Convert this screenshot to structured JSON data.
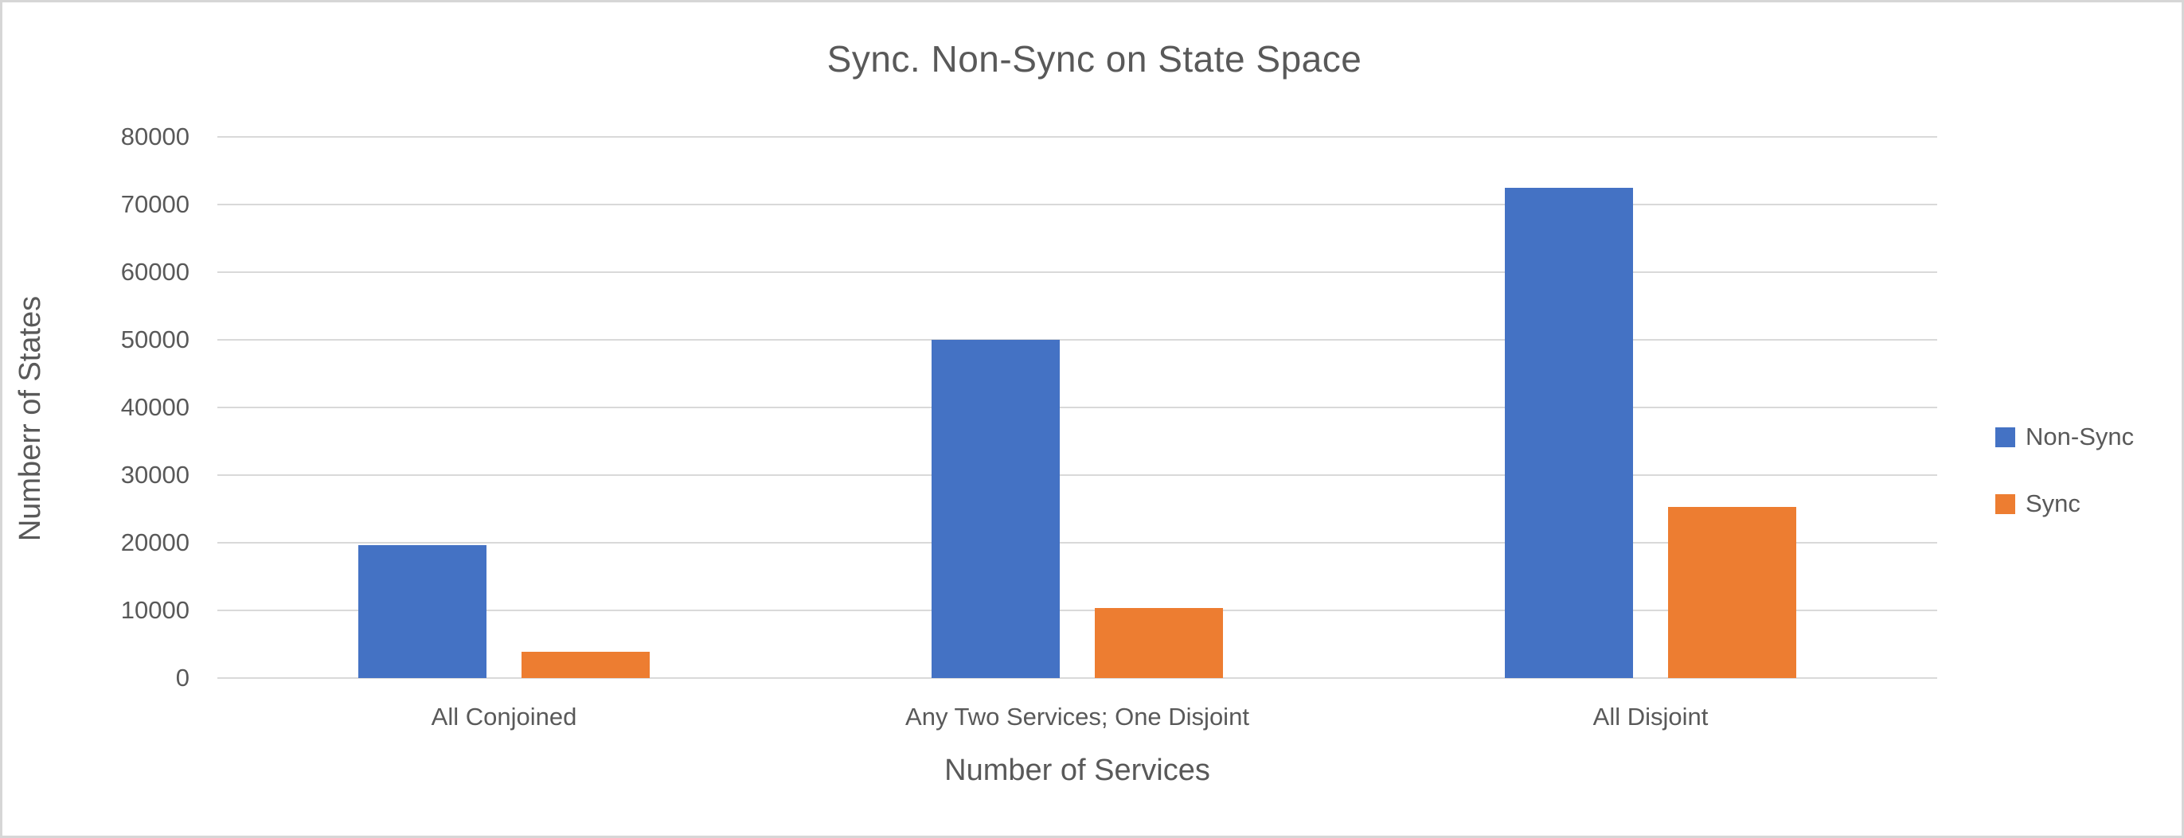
{
  "chart_data": {
    "type": "bar",
    "title": "Sync. Non-Sync on State Space",
    "xlabel": "Number of Services",
    "ylabel": "Numberr of States",
    "categories": [
      "All Conjoined",
      "Any Two Services; One Disjoint",
      "All Disjoint"
    ],
    "series": [
      {
        "name": "Non-Sync",
        "color": "#4472C4",
        "values": [
          19600,
          50000,
          72500
        ]
      },
      {
        "name": "Sync",
        "color": "#ED7D31",
        "values": [
          3900,
          10400,
          25300
        ]
      }
    ],
    "ylim": [
      0,
      80000
    ],
    "y_ticks": [
      "0",
      "10000",
      "20000",
      "30000",
      "40000",
      "50000",
      "60000",
      "70000",
      "80000"
    ],
    "grid": "horizontal gridlines on",
    "legend_position": "right"
  },
  "colors": {
    "text": "#595959",
    "gridline": "#D9D9D9",
    "frame_border": "#D6D6D6",
    "background": "#FFFFFF"
  }
}
